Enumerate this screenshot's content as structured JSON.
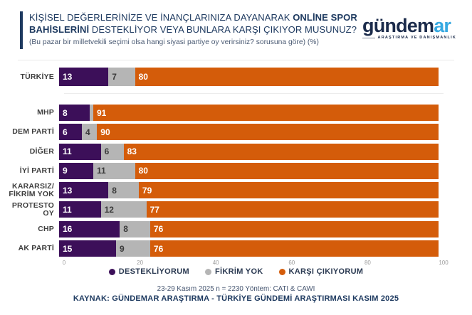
{
  "header": {
    "title_lines": [
      [
        {
          "text": "KİŞİSEL DEĞERLERİNİZE VE İNANÇLARINIZA DAYANARAK ",
          "bold": false
        },
        {
          "text": "ONLİNE SPOR",
          "bold": true
        }
      ],
      [
        {
          "text": "BAHİSLERİNİ",
          "bold": true
        },
        {
          "text": " DESTEKLİYOR VEYA BUNLARA KARŞI ÇIKIYOR MUSUNUZ?",
          "bold": false
        }
      ]
    ],
    "subtitle": "(Bu pazar bir milletvekili seçimi olsa hangi siyasi partiye oy verirsiniz? sorusuna göre) (%)",
    "accent_color": "#1E3A60"
  },
  "logo": {
    "wordmark_dark": "gündem",
    "wordmark_accent": "ar",
    "tagline": "ARAŞTIRMA VE DANIŞMANLIK",
    "dark_color": "#1B2B4B",
    "accent_color": "#36A9E1"
  },
  "chart_data": {
    "type": "bar",
    "orientation": "horizontal-stacked",
    "title": "KİŞİSEL DEĞERLERİNİZE VE İNANÇLARINIZA DAYANARAK ONLİNE SPOR BAHİSLERİNİ DESTEKLİYOR VEYA BUNLARA KARŞI ÇIKIYOR MUSUNUZ?",
    "subtitle": "(Bu pazar bir milletvekili seçimi olsa hangi siyasi partiye oy verirsiniz? sorusuna göre) (%)",
    "categories": [
      "TÜRKİYE",
      "MHP",
      "DEM PARTİ",
      "DİĞER",
      "İYİ PARTİ",
      "KARARSIZ/\nFİKRİM YOK",
      "PROTESTO OY",
      "CHP",
      "AK PARTİ"
    ],
    "series": [
      {
        "name": "DESTEKLİYORUM",
        "color": "#3C0F59",
        "label_color": "#FFFFFF",
        "values": [
          13,
          8,
          6,
          11,
          9,
          13,
          11,
          16,
          15
        ]
      },
      {
        "name": "FİKRİM YOK",
        "color": "#B5B5B5",
        "label_color": "#3A3A3A",
        "values": [
          7,
          1,
          4,
          6,
          11,
          8,
          12,
          8,
          9
        ]
      },
      {
        "name": "KARŞI ÇIKIYORUM",
        "color": "#D45C0A",
        "label_color": "#FFFFFF",
        "values": [
          80,
          91,
          90,
          83,
          80,
          79,
          77,
          76,
          76
        ]
      }
    ],
    "xlim": [
      0,
      100
    ],
    "x_ticks": [
      0,
      20,
      40,
      60,
      80,
      100
    ],
    "legend_position": "bottom",
    "grid": false,
    "min_label_value": 2
  },
  "footer": {
    "note": "23-29 Kasım 2025 n = 2230 Yöntem: CATI & CAWI",
    "source": "KAYNAK: GÜNDEMAR ARAŞTIRMA - TÜRKİYE GÜNDEMİ ARAŞTIRMASI KASIM 2025"
  }
}
